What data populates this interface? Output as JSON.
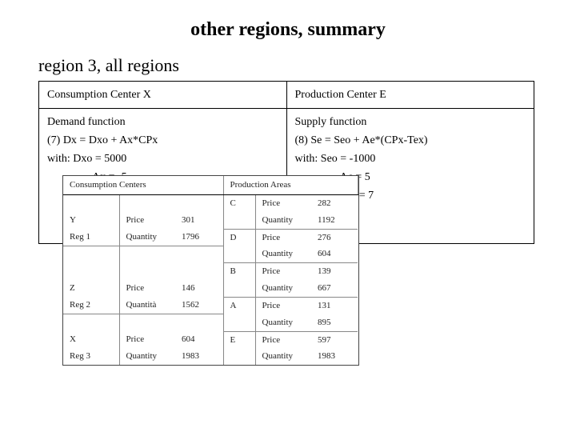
{
  "title": "other regions, summary",
  "subtitle": "region 3, all regions",
  "eq_table": {
    "columns": [
      "Consumption Center    X",
      "Production Center    E"
    ],
    "left": {
      "fn_label": "Demand function",
      "eq": "(7)       Dx = Dxo + Ax*CPx",
      "with": "with:     Dxo = 5000",
      "param": "Ax = -5"
    },
    "right": {
      "fn_label": "Supply function",
      "eq": "(8)         Se = Seo + Ae*(CPx-Tex)",
      "with": "with:       Seo = -1000",
      "param1": "Ac = 5",
      "param2": "Tex = 7"
    }
  },
  "data_table": {
    "header_left": "Consumption Centers",
    "header_right": "Production Areas",
    "rows": [
      {
        "cc": "",
        "cmetric": "",
        "cval": "",
        "pa": "C",
        "pmetric": "Price",
        "pval": "282"
      },
      {
        "cc": "Y",
        "cmetric": "Price",
        "cval": "301",
        "pa": "",
        "pmetric": "Quantity",
        "pval": "1192",
        "sep_right": true
      },
      {
        "cc": "Reg 1",
        "cmetric": "Quantity",
        "cval": "1796",
        "pa": "D",
        "pmetric": "Price",
        "pval": "276",
        "sep_left": true
      },
      {
        "cc": "",
        "cmetric": "",
        "cval": "",
        "pa": "",
        "pmetric": "Quantity",
        "pval": "604",
        "sep_right": true
      },
      {
        "cc": "",
        "cmetric": "",
        "cval": "",
        "pa": "B",
        "pmetric": "Price",
        "pval": "139"
      },
      {
        "cc": "Z",
        "cmetric": "Price",
        "cval": "146",
        "pa": "",
        "pmetric": "Quantity",
        "pval": "667",
        "sep_right": true
      },
      {
        "cc": "Reg 2",
        "cmetric": "Quantità",
        "cval": "1562",
        "pa": "A",
        "pmetric": "Price",
        "pval": "131",
        "sep_left": true
      },
      {
        "cc": "",
        "cmetric": "",
        "cval": "",
        "pa": "",
        "pmetric": "Quantity",
        "pval": "895",
        "sep_right": true
      },
      {
        "cc": "X",
        "cmetric": "Price",
        "cval": "604",
        "pa": "E",
        "pmetric": "Price",
        "pval": "597"
      },
      {
        "cc": "Reg 3",
        "cmetric": "Quantity",
        "cval": "1983",
        "pa": "",
        "pmetric": "Quantity",
        "pval": "1983"
      }
    ]
  }
}
